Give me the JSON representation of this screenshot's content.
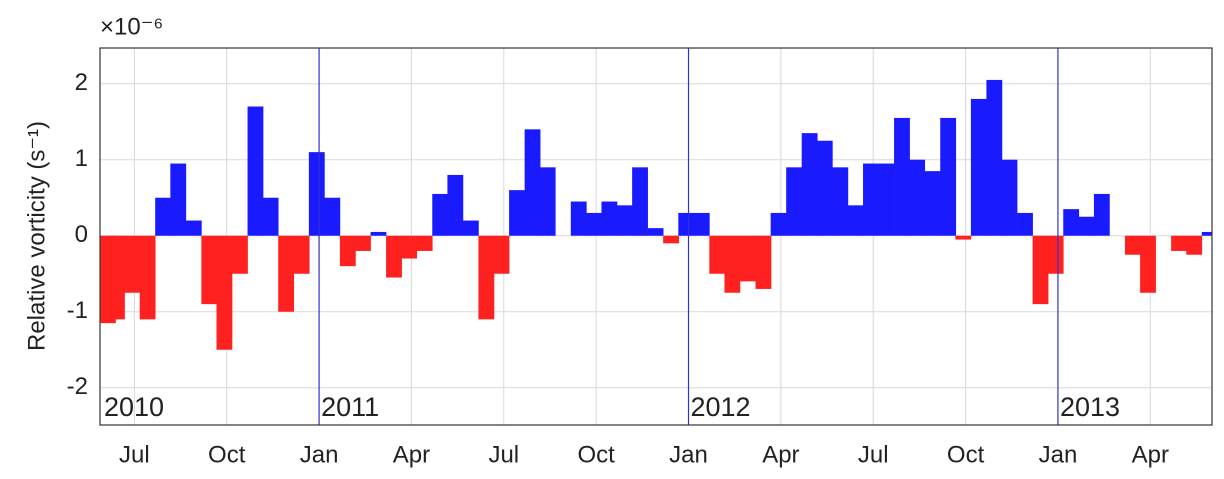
{
  "chart_data": {
    "type": "bar",
    "y_label": "Relative vorticity (s⁻¹)",
    "y_multiplier": "×10⁻⁶",
    "x": [
      2010.41,
      2010.452,
      2010.493,
      2010.535,
      2010.577,
      2010.618,
      2010.66,
      2010.702,
      2010.743,
      2010.785,
      2010.827,
      2010.868,
      2010.91,
      2010.952,
      2010.993,
      2011.035,
      2011.077,
      2011.118,
      2011.16,
      2011.202,
      2011.243,
      2011.285,
      2011.327,
      2011.368,
      2011.41,
      2011.452,
      2011.493,
      2011.535,
      2011.577,
      2011.618,
      2011.66,
      2011.702,
      2011.743,
      2011.785,
      2011.827,
      2011.868,
      2011.91,
      2011.952,
      2011.993,
      2012.035,
      2012.077,
      2012.118,
      2012.16,
      2012.202,
      2012.243,
      2012.285,
      2012.327,
      2012.368,
      2012.41,
      2012.452,
      2012.493,
      2012.535,
      2012.577,
      2012.618,
      2012.66,
      2012.702,
      2012.743,
      2012.785,
      2012.827,
      2012.868,
      2012.91,
      2012.952,
      2012.993,
      2013.035,
      2013.077,
      2013.118,
      2013.16,
      2013.202,
      2013.243,
      2013.285,
      2013.327,
      2013.368,
      2013.41
    ],
    "values": [
      -1.15,
      -1.1,
      -0.75,
      -1.1,
      0.5,
      0.95,
      0.2,
      -0.9,
      -1.5,
      -0.5,
      1.7,
      0.5,
      -1.0,
      -0.5,
      1.1,
      0.5,
      -0.4,
      -0.2,
      0.05,
      -0.55,
      -0.3,
      -0.2,
      0.55,
      0.8,
      0.2,
      -1.1,
      -0.5,
      0.6,
      1.4,
      0.9,
      0.0,
      0.45,
      0.3,
      0.45,
      0.4,
      0.9,
      0.1,
      -0.1,
      0.3,
      0.3,
      -0.5,
      -0.75,
      -0.6,
      -0.7,
      0.3,
      0.9,
      1.35,
      1.25,
      0.9,
      0.4,
      0.95,
      0.95,
      1.55,
      1.0,
      0.85,
      1.55,
      -0.05,
      1.8,
      2.05,
      1.0,
      0.3,
      -0.9,
      -0.5,
      0.35,
      0.25,
      0.55,
      0.0,
      -0.25,
      -0.75,
      0.0,
      -0.2,
      -0.25,
      0.05
    ],
    "positive_color": "#1a1aff",
    "negative_color": "#ff2020",
    "xlim": [
      2010.407,
      2013.417
    ],
    "xticks": [
      {
        "value": 2010.5,
        "label": "Jul"
      },
      {
        "value": 2010.75,
        "label": "Oct"
      },
      {
        "value": 2011.0,
        "label": "Jan"
      },
      {
        "value": 2011.25,
        "label": "Apr"
      },
      {
        "value": 2011.5,
        "label": "Jul"
      },
      {
        "value": 2011.75,
        "label": "Oct"
      },
      {
        "value": 2012.0,
        "label": "Jan"
      },
      {
        "value": 2012.25,
        "label": "Apr"
      },
      {
        "value": 2012.5,
        "label": "Jul"
      },
      {
        "value": 2012.75,
        "label": "Oct"
      },
      {
        "value": 2013.0,
        "label": "Jan"
      },
      {
        "value": 2013.25,
        "label": "Apr"
      }
    ],
    "ylim": [
      -2.49,
      2.47
    ],
    "yticks": [
      -2,
      -1,
      0,
      1,
      2
    ],
    "grid": true,
    "years": [
      "2010",
      "2011",
      "2012",
      "2013"
    ],
    "year_lines": [
      2011,
      2012,
      2013
    ],
    "year_line_color": "#3333cc"
  }
}
